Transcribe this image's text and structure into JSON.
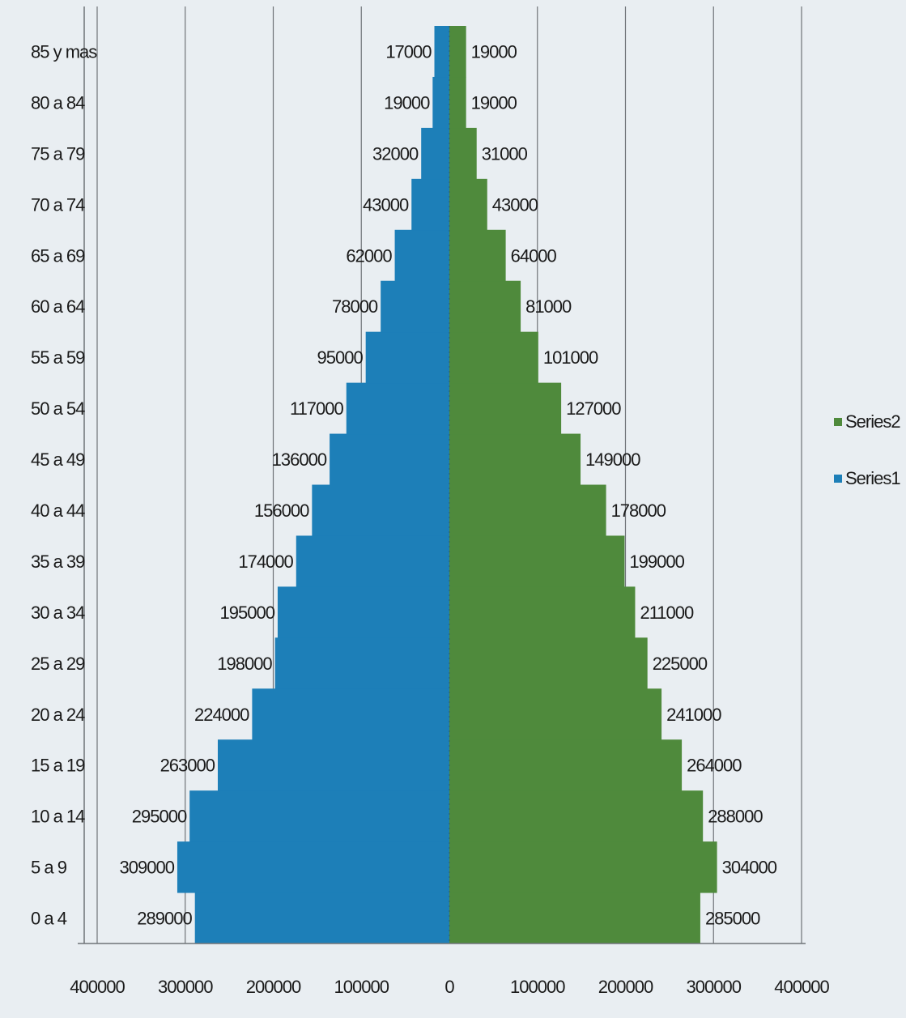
{
  "colors": {
    "series1": "#1d7fb8",
    "series2": "#4f8a3c",
    "grid": "#6f7378",
    "background": "#e9eef2"
  },
  "chart_data": {
    "type": "bar",
    "orientation": "horizontal",
    "layout": "population-pyramid",
    "categories": [
      "0 a 4",
      "5 a 9",
      "10 a 14",
      "15 a 19",
      "20 a 24",
      "25 a 29",
      "30 a 34",
      "35 a 39",
      "40 a 44",
      "45 a 49",
      "50 a 54",
      "55 a 59",
      "60 a 64",
      "65 a 69",
      "70 a 74",
      "75 a 79",
      "80 a 84",
      "85 y mas"
    ],
    "series": [
      {
        "name": "Series1",
        "side": "left",
        "values": [
          289000,
          309000,
          295000,
          263000,
          224000,
          198000,
          195000,
          174000,
          156000,
          136000,
          117000,
          95000,
          78000,
          62000,
          43000,
          32000,
          19000,
          17000
        ]
      },
      {
        "name": "Series2",
        "side": "right",
        "values": [
          285000,
          304000,
          288000,
          264000,
          241000,
          225000,
          211000,
          199000,
          178000,
          149000,
          127000,
          101000,
          81000,
          64000,
          43000,
          31000,
          19000,
          19000
        ]
      }
    ],
    "xlim": [
      -400000,
      400000
    ],
    "x_tick_labels": [
      "400000",
      "300000",
      "200000",
      "100000",
      "0",
      "100000",
      "200000",
      "300000",
      "400000"
    ],
    "grid": "vertical",
    "legend_position": "right",
    "legend_order": [
      "Series2",
      "Series1"
    ]
  }
}
